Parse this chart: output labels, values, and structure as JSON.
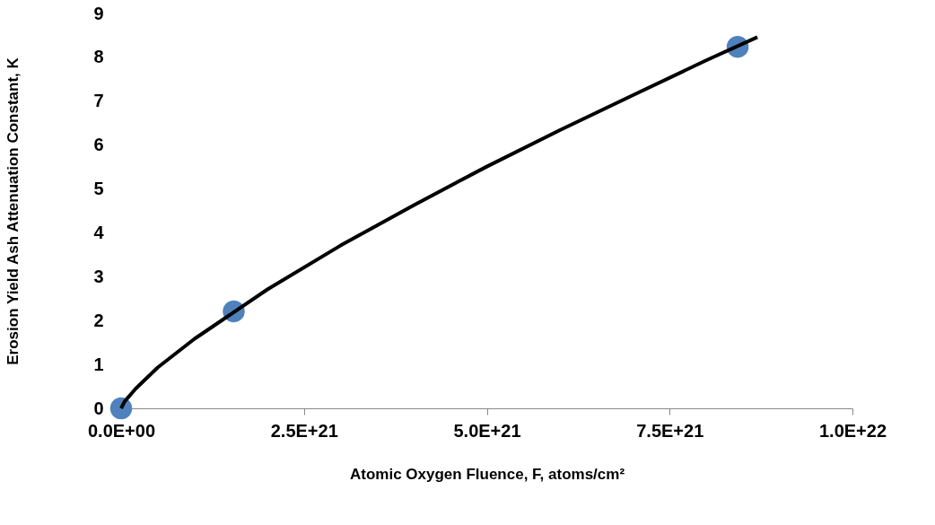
{
  "chart_data": {
    "type": "scatter",
    "xlabel": "Atomic Oxygen Fluence, F, atoms/cm²",
    "ylabel": "Erosion Yield Ash Attenuation Constant, K",
    "xlim": [
      0,
      1e+22
    ],
    "ylim": [
      0,
      9
    ],
    "xticks": [
      {
        "value": 0,
        "label": "0.0E+00"
      },
      {
        "value": 2.5e+21,
        "label": "2.5E+21"
      },
      {
        "value": 5e+21,
        "label": "5.0E+21"
      },
      {
        "value": 7.5e+21,
        "label": "7.5E+21"
      },
      {
        "value": 1e+22,
        "label": "1.0E+22"
      }
    ],
    "yticks": [
      0,
      1,
      2,
      3,
      4,
      5,
      6,
      7,
      8,
      9
    ],
    "grid": false,
    "marker": "circle",
    "series": [
      {
        "type": "scatter",
        "color": "#4f81bd",
        "x": [
          0,
          1.54e+21,
          8.43e+21
        ],
        "values": [
          0,
          2.21,
          8.24
        ]
      },
      {
        "type": "line",
        "color": "#000000",
        "line_style": "solid",
        "marker": "none",
        "x": [
          0,
          5e+19,
          2e+20,
          5e+20,
          1e+21,
          2e+21,
          3e+21,
          4e+21,
          5e+21,
          6e+21,
          7e+21,
          8e+21,
          8.7e+21
        ],
        "values": [
          0,
          0.16,
          0.45,
          0.93,
          1.58,
          2.71,
          3.71,
          4.63,
          5.51,
          6.34,
          7.14,
          7.93,
          8.46
        ]
      }
    ]
  }
}
